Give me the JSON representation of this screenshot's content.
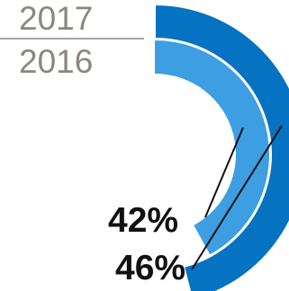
{
  "colors": {
    "outer_ring": "#0673c2",
    "inner_ring": "#3d9ee2",
    "year_text": "#8c8680",
    "divider": "#8c8680",
    "leader": "#111111",
    "value_text": "#111111"
  },
  "chart_data": {
    "type": "pie",
    "style": "concentric-donut",
    "title": "",
    "rings": [
      {
        "name": "2017",
        "position": "outer",
        "value_percent": 46,
        "label": "46%"
      },
      {
        "name": "2016",
        "position": "inner",
        "value_percent": 42,
        "label": "42%"
      }
    ]
  }
}
